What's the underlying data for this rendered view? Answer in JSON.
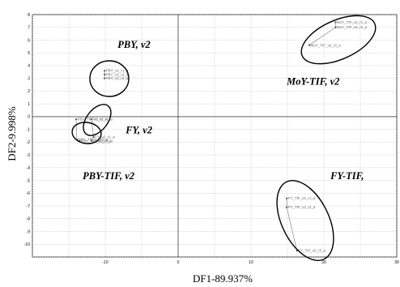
{
  "chart_data": {
    "type": "scatter",
    "title": "",
    "xlabel": "DF1-89.937%",
    "ylabel": "DF2-9.998%",
    "xlim": [
      -20,
      30
    ],
    "ylim": [
      -11,
      8
    ],
    "x_ticks": [
      "-10",
      "0",
      "10",
      "20",
      "30"
    ],
    "y_ticks": [
      "8",
      "7",
      "6",
      "5",
      "4",
      "3",
      "2",
      "1",
      "0",
      "-1",
      "-2",
      "-3",
      "-4",
      "-5",
      "-6",
      "-7",
      "-8",
      "-9",
      "-10"
    ],
    "grid": true,
    "series": [
      {
        "name": "PBY, v2",
        "points": [
          {
            "x": -10.1,
            "y": 3.6,
            "label": "PBY_v2_r1_a"
          },
          {
            "x": -10.1,
            "y": 3.3,
            "label": "PBY_v2_r2_a"
          },
          {
            "x": -10.1,
            "y": 3.0,
            "label": "PBY_v2_r3_a"
          }
        ]
      },
      {
        "name": "MoY-TIF, v2",
        "points": [
          {
            "x": 21.6,
            "y": 7.4,
            "label": "MoY_TIF_v2_r1_a"
          },
          {
            "x": 21.6,
            "y": 7.0,
            "label": "MoY_TIF_v2_r2_a"
          },
          {
            "x": 18.0,
            "y": 5.6,
            "label": "MoY_TIF_v2_r3_a"
          }
        ]
      },
      {
        "name": "FY, v2",
        "points": [
          {
            "x": -11.9,
            "y": -0.2,
            "label": "FY_v2_r1_a"
          },
          {
            "x": -11.6,
            "y": -1.6,
            "label": "FY_v2_r2_a"
          },
          {
            "x": -11.9,
            "y": -1.9,
            "label": "FY_v2_r3_a"
          }
        ]
      },
      {
        "name": "PBY-TIF, v2",
        "points": [
          {
            "x": -14.0,
            "y": -0.2,
            "label": "PBY_TIF_v2_r1_a"
          },
          {
            "x": -13.9,
            "y": -1.8,
            "label": "PBY_TIF_v2_r2_a"
          },
          {
            "x": -13.5,
            "y": -1.9,
            "label": "PBY_TIF_v2_r3_a"
          }
        ]
      },
      {
        "name": "FY-TIF,",
        "points": [
          {
            "x": 14.9,
            "y": -6.4,
            "label": "FY_TIF_v2_r1_a"
          },
          {
            "x": 14.9,
            "y": -7.1,
            "label": "FY_TIF_v2_r2_a"
          },
          {
            "x": 16.3,
            "y": -10.5,
            "label": "FY_TIF_v2_r3_a"
          }
        ]
      }
    ],
    "group_labels": [
      {
        "text": "PBY, v2",
        "x": -8.3,
        "y": 5.4
      },
      {
        "text": "MoY-TIF, v2",
        "x": 14.9,
        "y": 2.5
      },
      {
        "text": "FY, v2",
        "x": -7.2,
        "y": -1.3
      },
      {
        "text": "PBY-TIF, v2",
        "x": -13.1,
        "y": -4.9
      },
      {
        "text": "FY-TIF,",
        "x": 20.9,
        "y": -4.9
      }
    ]
  }
}
